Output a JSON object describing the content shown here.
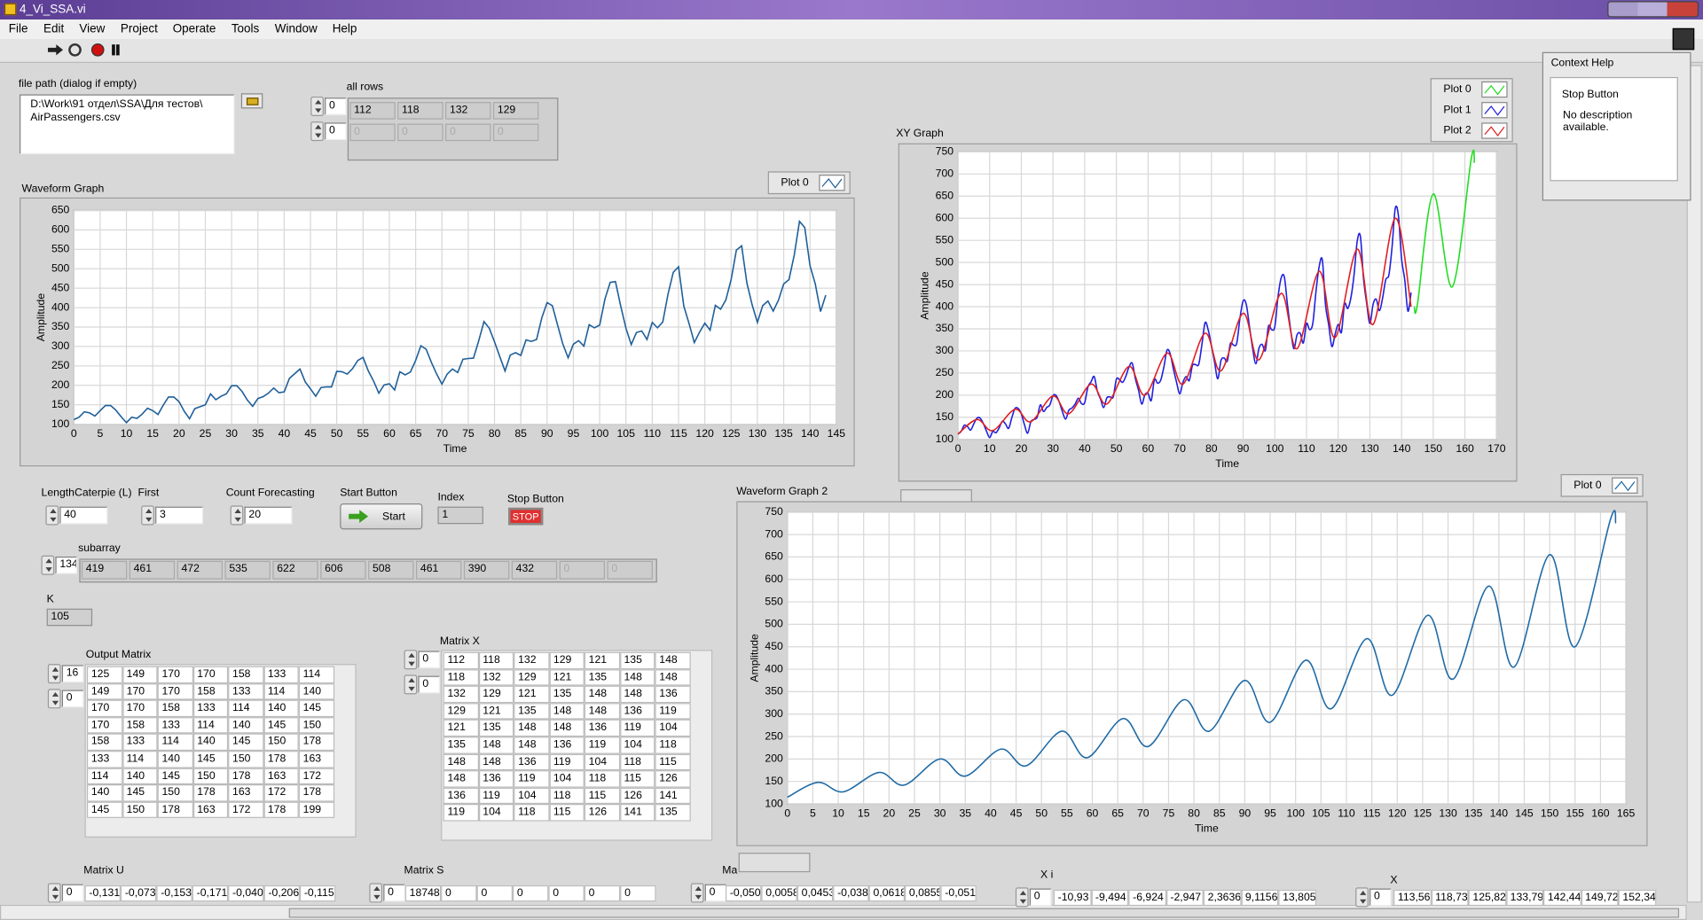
{
  "window": {
    "title": "4_Vi_SSA.vi"
  },
  "menu": [
    "File",
    "Edit",
    "View",
    "Project",
    "Operate",
    "Tools",
    "Window",
    "Help"
  ],
  "controls": {
    "file_path": {
      "label": "file path (dialog if empty)",
      "value_lines": [
        "D:\\Work\\91 отдел\\SSA\\Для тестов\\",
        "AirPassengers.csv"
      ]
    },
    "all_rows": {
      "label": "all rows",
      "index": [
        0,
        0
      ],
      "values": [
        112,
        118,
        132,
        129
      ],
      "values2": [
        0,
        0,
        0,
        0
      ]
    },
    "length": {
      "label": "LengthCaterpie (L)",
      "value": 40
    },
    "first": {
      "label": "First",
      "value": 3
    },
    "count": {
      "label": "Count Forecasting",
      "value": 20
    },
    "start_button": {
      "label": "Start Button",
      "text": "Start"
    },
    "index": {
      "label": "Index",
      "value": 1
    },
    "stop_button": {
      "label": "Stop Button",
      "text": "STOP"
    },
    "subarray": {
      "label": "subarray",
      "index": 134,
      "values": [
        419,
        461,
        472,
        535,
        622,
        606,
        508,
        461,
        390,
        432
      ],
      "empty": [
        0,
        0
      ]
    },
    "k": {
      "label": "K",
      "value": 105
    },
    "output_matrix": {
      "label": "Output Matrix",
      "index": [
        16,
        0
      ],
      "rows": [
        [
          125,
          149,
          170,
          170,
          158,
          133,
          114
        ],
        [
          149,
          170,
          170,
          158,
          133,
          114,
          140
        ],
        [
          170,
          170,
          158,
          133,
          114,
          140,
          145
        ],
        [
          170,
          158,
          133,
          114,
          140,
          145,
          150
        ],
        [
          158,
          133,
          114,
          140,
          145,
          150,
          178
        ],
        [
          133,
          114,
          140,
          145,
          150,
          178,
          163
        ],
        [
          114,
          140,
          145,
          150,
          178,
          163,
          172
        ],
        [
          140,
          145,
          150,
          178,
          163,
          172,
          178
        ],
        [
          145,
          150,
          178,
          163,
          172,
          178,
          199
        ]
      ]
    },
    "matrix_x": {
      "label": "Matrix X",
      "index": [
        0,
        0
      ],
      "rows": [
        [
          112,
          118,
          132,
          129,
          121,
          135,
          148
        ],
        [
          118,
          132,
          129,
          121,
          135,
          148,
          148
        ],
        [
          132,
          129,
          121,
          135,
          148,
          148,
          136
        ],
        [
          129,
          121,
          135,
          148,
          148,
          136,
          119
        ],
        [
          121,
          135,
          148,
          148,
          136,
          119,
          104
        ],
        [
          135,
          148,
          148,
          136,
          119,
          104,
          118
        ],
        [
          148,
          148,
          136,
          119,
          104,
          118,
          115
        ],
        [
          148,
          136,
          119,
          104,
          118,
          115,
          126
        ],
        [
          136,
          119,
          104,
          118,
          115,
          126,
          141
        ],
        [
          119,
          104,
          118,
          115,
          126,
          141,
          135
        ]
      ]
    },
    "matrix_u": {
      "label": "Matrix U",
      "index": 0,
      "values": [
        "-0,131",
        "-0,073",
        "-0,153",
        "-0,171",
        "-0,040",
        "-0,206",
        "-0,115"
      ]
    },
    "matrix_s": {
      "label": "Matrix S",
      "index": 0,
      "values": [
        "18748,",
        "0",
        "0",
        "0",
        "0",
        "0",
        "0"
      ]
    },
    "matrix_v": {
      "label": "Ma",
      "index": 0,
      "values": [
        "-0,0506",
        "0,0058",
        "0,0453",
        "-0,038",
        "0,0618",
        "0,0855",
        "-0,051"
      ]
    },
    "xi": {
      "label": "X i",
      "index": 0,
      "values": [
        "-10,93",
        "-9,494",
        "-6,924",
        "-2,947",
        "2,3636",
        "9,1156",
        "13,805"
      ]
    },
    "x": {
      "label": "X",
      "index": 0,
      "values": [
        "113,56",
        "118,73",
        "125,82",
        "133,79",
        "142,44",
        "149,72",
        "152,34"
      ]
    }
  },
  "context_help": {
    "title": "Context Help",
    "heading": "Stop Button",
    "text": "No description available."
  },
  "chart_data": [
    {
      "type": "line",
      "title": "Waveform Graph",
      "x_label": "Time",
      "y_label": "Amplitude",
      "xlim": [
        0,
        145
      ],
      "ylim": [
        100,
        650
      ],
      "xticks": [
        0,
        5,
        10,
        15,
        20,
        25,
        30,
        35,
        40,
        45,
        50,
        55,
        60,
        65,
        70,
        75,
        80,
        85,
        90,
        95,
        100,
        105,
        110,
        115,
        120,
        125,
        130,
        135,
        140,
        145
      ],
      "yticks": [
        100,
        150,
        200,
        250,
        300,
        350,
        400,
        450,
        500,
        550,
        600,
        650
      ],
      "grid": true,
      "series": [
        {
          "name": "Plot 0",
          "color": "#1f5f99",
          "values": [
            112,
            118,
            132,
            129,
            121,
            135,
            148,
            148,
            136,
            119,
            104,
            118,
            115,
            126,
            141,
            135,
            125,
            149,
            170,
            170,
            158,
            133,
            114,
            140,
            145,
            150,
            178,
            163,
            172,
            178,
            199,
            199,
            184,
            162,
            146,
            166,
            171,
            180,
            193,
            181,
            183,
            218,
            230,
            242,
            209,
            191,
            172,
            194,
            196,
            196,
            236,
            235,
            229,
            243,
            264,
            272,
            237,
            211,
            180,
            201,
            204,
            188,
            235,
            227,
            234,
            264,
            302,
            293,
            259,
            229,
            203,
            229,
            242,
            233,
            267,
            269,
            270,
            315,
            364,
            347,
            312,
            274,
            237,
            278,
            284,
            277,
            317,
            313,
            318,
            374,
            413,
            405,
            355,
            306,
            271,
            306,
            315,
            301,
            356,
            348,
            355,
            422,
            465,
            467,
            404,
            347,
            305,
            336,
            340,
            318,
            362,
            348,
            363,
            435,
            491,
            505,
            404,
            359,
            310,
            337,
            360,
            342,
            406,
            396,
            420,
            472,
            548,
            559,
            463,
            407,
            362,
            405,
            417,
            391,
            419,
            461,
            472,
            535,
            622,
            606,
            508,
            461,
            390,
            432
          ]
        }
      ]
    },
    {
      "type": "line",
      "title": "XY Graph",
      "x_label": "Time",
      "y_label": "Amplitude",
      "xlim": [
        0,
        170
      ],
      "ylim": [
        100,
        750
      ],
      "xticks": [
        0,
        10,
        20,
        30,
        40,
        50,
        60,
        70,
        80,
        90,
        100,
        110,
        120,
        130,
        140,
        150,
        160,
        170
      ],
      "yticks": [
        100,
        150,
        200,
        250,
        300,
        350,
        400,
        450,
        500,
        550,
        600,
        650,
        700,
        750
      ],
      "grid": true,
      "smooth": true,
      "series": [
        {
          "name": "Plot 0",
          "color": "#22dd22",
          "x": [
            144,
            145,
            150,
            156,
            162,
            163
          ],
          "values": [
            400,
            405,
            655,
            445,
            735,
            725
          ]
        },
        {
          "name": "Plot 1",
          "color": "#2020e0",
          "values": [
            112,
            118,
            132,
            129,
            121,
            135,
            148,
            148,
            136,
            119,
            104,
            118,
            115,
            126,
            141,
            135,
            125,
            149,
            170,
            170,
            158,
            133,
            114,
            140,
            145,
            150,
            178,
            163,
            172,
            178,
            199,
            199,
            184,
            162,
            146,
            166,
            171,
            180,
            193,
            181,
            183,
            218,
            230,
            242,
            209,
            191,
            172,
            194,
            196,
            196,
            236,
            235,
            229,
            243,
            264,
            272,
            237,
            211,
            180,
            201,
            204,
            188,
            235,
            227,
            234,
            264,
            302,
            293,
            259,
            229,
            203,
            229,
            242,
            233,
            267,
            269,
            270,
            315,
            364,
            347,
            312,
            274,
            237,
            278,
            284,
            277,
            317,
            313,
            318,
            374,
            413,
            405,
            355,
            306,
            271,
            306,
            315,
            301,
            356,
            348,
            355,
            422,
            465,
            467,
            404,
            347,
            305,
            336,
            340,
            318,
            362,
            348,
            363,
            435,
            491,
            505,
            404,
            359,
            310,
            337,
            360,
            342,
            406,
            396,
            420,
            472,
            548,
            559,
            463,
            407,
            362,
            405,
            417,
            391,
            419,
            461,
            472,
            535,
            622,
            606,
            508,
            461,
            390,
            432
          ]
        },
        {
          "name": "Plot 2",
          "color": "#e02020",
          "x": [
            0,
            6,
            11,
            18,
            23,
            30,
            35,
            42,
            47,
            54,
            59,
            66,
            71,
            78,
            83,
            90,
            95,
            102,
            107,
            114,
            119,
            126,
            131,
            138,
            143
          ],
          "values": [
            112,
            145,
            120,
            168,
            140,
            198,
            158,
            225,
            180,
            265,
            200,
            295,
            225,
            340,
            255,
            385,
            280,
            430,
            305,
            480,
            330,
            530,
            360,
            600,
            400
          ]
        }
      ]
    },
    {
      "type": "line",
      "title": "Waveform Graph 2",
      "x_label": "Time",
      "y_label": "Amplitude",
      "xlim": [
        0,
        165
      ],
      "ylim": [
        100,
        750
      ],
      "xticks": [
        0,
        5,
        10,
        15,
        20,
        25,
        30,
        35,
        40,
        45,
        50,
        55,
        60,
        65,
        70,
        75,
        80,
        85,
        90,
        95,
        100,
        105,
        110,
        115,
        120,
        125,
        130,
        135,
        140,
        145,
        150,
        155,
        160,
        165
      ],
      "yticks": [
        100,
        150,
        200,
        250,
        300,
        350,
        400,
        450,
        500,
        550,
        600,
        650,
        700,
        750
      ],
      "grid": true,
      "smooth": true,
      "series": [
        {
          "name": "Plot 0",
          "color": "#1f6aa5",
          "x": [
            0,
            6,
            11,
            18,
            23,
            30,
            35,
            42,
            47,
            54,
            59,
            66,
            71,
            78,
            83,
            90,
            95,
            102,
            107,
            114,
            119,
            126,
            131,
            138,
            143,
            150,
            155,
            162,
            163
          ],
          "values": [
            115,
            148,
            127,
            170,
            142,
            200,
            162,
            222,
            185,
            262,
            203,
            290,
            228,
            332,
            262,
            375,
            282,
            420,
            312,
            468,
            342,
            520,
            378,
            585,
            405,
            655,
            450,
            735,
            725
          ]
        }
      ]
    }
  ]
}
